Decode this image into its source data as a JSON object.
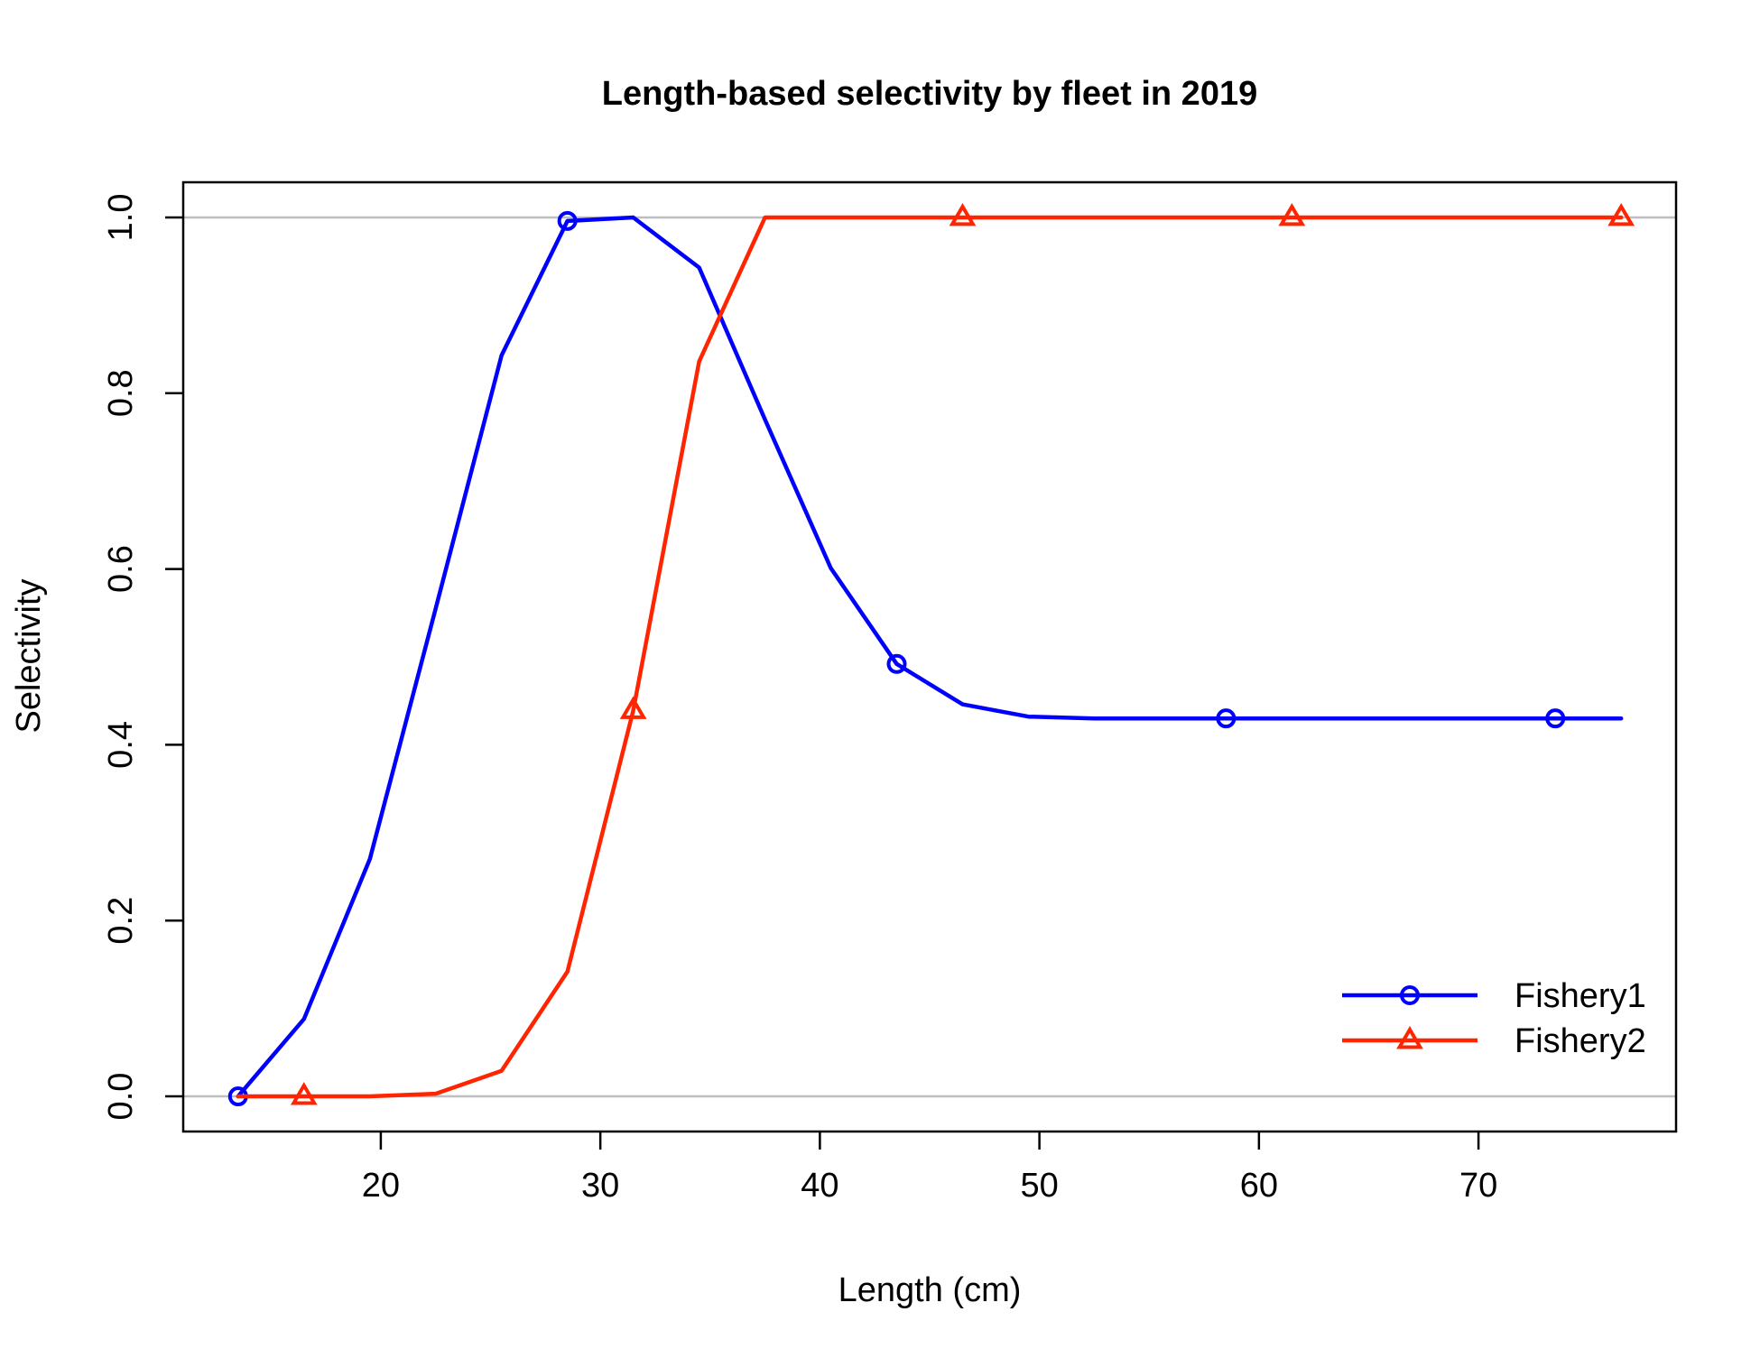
{
  "chart_data": {
    "type": "line",
    "title": "Length-based selectivity by fleet in 2019",
    "xlabel": "Length (cm)",
    "ylabel": "Selectivity",
    "xlim": [
      11,
      79
    ],
    "ylim": [
      -0.04,
      1.04
    ],
    "xticks": [
      20,
      30,
      40,
      50,
      60,
      70
    ],
    "xtick_labels": [
      "20",
      "30",
      "40",
      "50",
      "60",
      "70"
    ],
    "yticks": [
      0.0,
      0.2,
      0.4,
      0.6,
      0.8,
      1.0
    ],
    "ytick_labels": [
      "0.0",
      "0.2",
      "0.4",
      "0.6",
      "0.8",
      "1.0"
    ],
    "reference_lines": [
      0,
      1
    ],
    "grid": false,
    "legend_position": "bottom-right",
    "series": [
      {
        "name": "Fishery1",
        "color": "#0000ff",
        "marker": "circle",
        "x": [
          13.5,
          16.5,
          19.5,
          22.5,
          25.5,
          28.5,
          31.5,
          34.5,
          37.5,
          40.5,
          43.5,
          46.5,
          49.5,
          52.5,
          55.5,
          58.5,
          61.5,
          64.5,
          67.5,
          70.5,
          73.5,
          76.5
        ],
        "values": [
          0.0,
          0.088,
          0.27,
          0.555,
          0.843,
          0.996,
          1.0,
          0.943,
          0.77,
          0.601,
          0.492,
          0.446,
          0.432,
          0.43,
          0.43,
          0.43,
          0.43,
          0.43,
          0.43,
          0.43,
          0.43,
          0.43
        ],
        "marker_x": [
          13.5,
          28.5,
          43.5,
          58.5,
          73.5
        ],
        "marker_values": [
          0.0,
          0.996,
          0.492,
          0.43,
          0.43
        ]
      },
      {
        "name": "Fishery2",
        "color": "#ff2500",
        "marker": "triangle",
        "x": [
          13.5,
          16.5,
          19.5,
          22.5,
          25.5,
          28.5,
          31.5,
          34.5,
          37.5,
          40.5,
          43.5,
          46.5,
          49.5,
          52.5,
          55.5,
          58.5,
          61.5,
          64.5,
          67.5,
          70.5,
          73.5,
          76.5
        ],
        "values": [
          0.0,
          0.0,
          0.0,
          0.003,
          0.029,
          0.142,
          0.439,
          0.836,
          1.0,
          1.0,
          1.0,
          1.0,
          1.0,
          1.0,
          1.0,
          1.0,
          1.0,
          1.0,
          1.0,
          1.0,
          1.0,
          1.0
        ],
        "marker_x": [
          16.5,
          31.5,
          46.5,
          61.5,
          76.5
        ],
        "marker_values": [
          0.0,
          0.439,
          1.0,
          1.0,
          1.0
        ]
      }
    ]
  }
}
